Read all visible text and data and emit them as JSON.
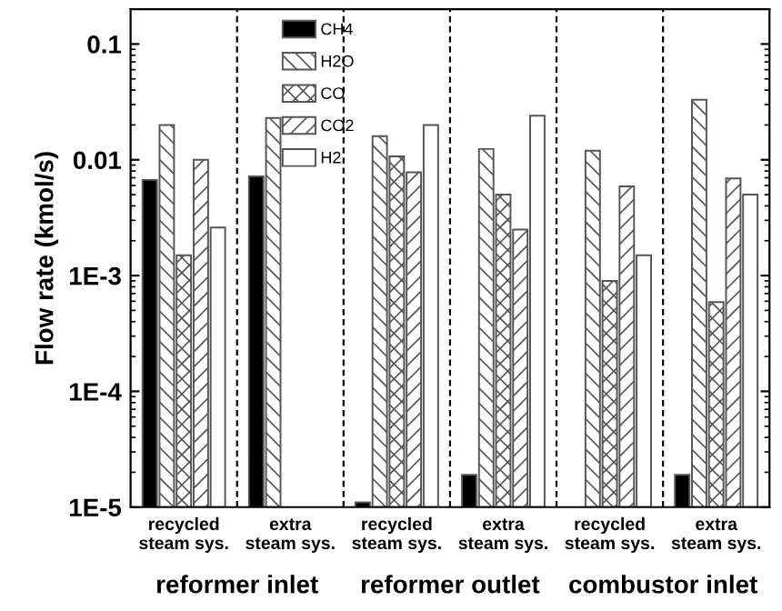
{
  "chart_data": {
    "type": "bar",
    "ylabel": "Flow rate (kmol/s)",
    "categories": [
      "recycled\nsteam sys.",
      "extra\nsteam sys.",
      "recycled\nsteam sys.",
      "extra\nsteam sys.",
      "recycled\nsteam sys.",
      "extra\nsteam sys."
    ],
    "series": [
      {
        "name": "CH4",
        "color": "#000000",
        "values": [
          0.0067,
          0.0072,
          1.1e-05,
          1.9e-05,
          null,
          1.9e-05
        ]
      },
      {
        "name": "H2O",
        "color": "#555555",
        "values": [
          0.02,
          0.023,
          0.016,
          0.0124,
          0.012,
          0.033
        ]
      },
      {
        "name": "CO",
        "color": "#555555",
        "values": [
          0.0015,
          null,
          0.0107,
          0.005,
          0.0009,
          0.00059
        ]
      },
      {
        "name": "CO2",
        "color": "#555555",
        "values": [
          0.01,
          null,
          0.0078,
          0.0025,
          0.0059,
          0.0069
        ]
      },
      {
        "name": "H2",
        "color": "#ffffff",
        "values": [
          0.0026,
          null,
          0.02,
          0.024,
          0.0015,
          0.005
        ]
      }
    ],
    "log": "y",
    "ylim": [
      1e-05,
      0.2
    ],
    "yticks": [
      {
        "value": 1e-05,
        "label": "1E-5"
      },
      {
        "value": 0.0001,
        "label": "1E-4"
      },
      {
        "value": 0.001,
        "label": "1E-3"
      },
      0.01,
      0.1
    ],
    "annotations": [
      "reformer inlet",
      "reformer outlet",
      "combustor inlet"
    ],
    "legend": "top",
    "grid": false
  }
}
